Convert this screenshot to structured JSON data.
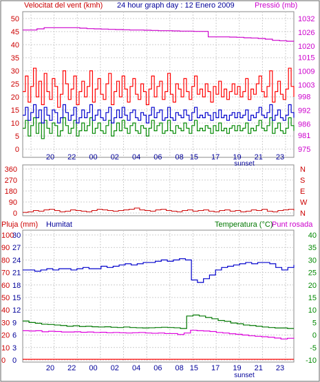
{
  "header": {
    "left_label": "Velocitat del vent (kmh)",
    "center_label": "24 hour graph day : 12 Enero 2009",
    "right_label": "Pressió (mb)"
  },
  "bottom_panel_labels": {
    "rain": "Pluja (mm)",
    "humidity": "Humitat",
    "temperature": "Temperatura (°C)",
    "dewpoint": "Punt rosada"
  },
  "colors": {
    "wind_speed": "#ff0000",
    "wind_avg": "#0000cc",
    "wind_gust_base": "#008800",
    "pressure": "#cc00cc",
    "wind_dir": "#cc0000",
    "humidity": "#0000cc",
    "temperature": "#007700",
    "dewpoint": "#dd00dd",
    "rain": "#ff0000",
    "axis_blue": "#000099",
    "axis_red": "#cc0000",
    "axis_green": "#008800",
    "axis_magenta": "#cc00cc"
  },
  "chart_data": [
    {
      "type": "line",
      "id": "wind-pressure",
      "x_ticks": [
        "20",
        "22",
        "00",
        "02",
        "04",
        "06",
        "08",
        "15",
        "17",
        "19",
        "21",
        "23"
      ],
      "x_sub_label": "sunset",
      "left_axis": {
        "label": "Velocitat del vent (kmh)",
        "ticks": [
          0,
          5,
          10,
          15,
          20,
          25,
          30,
          35,
          40,
          45,
          50
        ],
        "ylim": [
          0,
          50
        ]
      },
      "right_axis": {
        "label": "Pressió (mb)",
        "ticks": [
          975,
          981,
          986,
          992,
          998,
          1003,
          1009,
          1015,
          1020,
          1026,
          1032
        ],
        "ylim": [
          975,
          1032
        ]
      },
      "series": [
        {
          "axis": "left",
          "values": [
            22,
            28,
            18,
            24,
            31,
            20,
            26,
            17,
            29,
            22,
            19,
            27,
            24,
            16,
            21,
            30,
            25,
            19,
            23,
            28,
            17,
            22,
            26,
            20,
            24,
            30,
            18,
            23,
            27,
            21,
            19,
            25,
            29,
            17,
            22,
            26,
            20,
            28,
            23,
            18,
            24,
            27,
            21,
            19,
            25,
            22,
            17,
            23,
            28,
            20,
            24,
            26,
            19,
            22,
            29,
            21,
            18,
            25,
            23,
            20,
            27,
            22,
            19,
            24,
            28,
            21,
            23,
            20,
            25,
            22,
            18,
            24,
            21,
            26,
            20,
            23,
            19,
            22,
            25,
            21,
            24,
            20,
            22,
            27,
            19,
            23,
            21,
            25,
            28,
            22,
            20,
            24,
            30,
            18,
            22,
            26,
            21,
            19,
            23,
            31,
            24,
            20
          ]
        },
        {
          "axis": "left",
          "values": [
            13,
            16,
            11,
            14,
            17,
            12,
            15,
            10,
            16,
            13,
            11,
            15,
            14,
            10,
            12,
            17,
            14,
            11,
            13,
            16,
            10,
            12,
            15,
            12,
            14,
            17,
            11,
            13,
            15,
            12,
            11,
            14,
            16,
            10,
            12,
            15,
            12,
            16,
            13,
            11,
            14,
            15,
            12,
            11,
            14,
            13,
            10,
            13,
            16,
            12,
            14,
            15,
            11,
            12,
            16,
            12,
            11,
            14,
            13,
            12,
            15,
            13,
            11,
            14,
            16,
            12,
            13,
            12,
            14,
            13,
            11,
            14,
            12,
            15,
            12,
            13,
            11,
            13,
            14,
            12,
            14,
            12,
            13,
            15,
            11,
            13,
            12,
            14,
            16,
            13,
            12,
            14,
            17,
            11,
            13,
            15,
            12,
            11,
            13,
            17,
            14,
            12
          ]
        },
        {
          "axis": "left",
          "values": [
            8,
            11,
            5,
            9,
            12,
            6,
            10,
            4,
            11,
            8,
            6,
            10,
            9,
            5,
            7,
            12,
            9,
            6,
            8,
            11,
            5,
            7,
            10,
            7,
            9,
            12,
            6,
            8,
            10,
            7,
            6,
            9,
            11,
            5,
            7,
            10,
            7,
            11,
            8,
            6,
            9,
            10,
            7,
            6,
            9,
            8,
            5,
            8,
            11,
            7,
            9,
            10,
            6,
            7,
            11,
            7,
            6,
            9,
            8,
            7,
            10,
            8,
            6,
            9,
            11,
            7,
            8,
            7,
            9,
            8,
            6,
            9,
            7,
            10,
            7,
            8,
            6,
            8,
            9,
            7,
            9,
            7,
            8,
            10,
            6,
            8,
            7,
            9,
            11,
            8,
            7,
            9,
            12,
            6,
            8,
            10,
            7,
            6,
            8,
            12,
            9,
            7
          ]
        },
        {
          "axis": "right",
          "values": [
            1027,
            1027,
            1027.5,
            1028,
            1028,
            1028,
            1028,
            1028,
            1027.8,
            1027.6,
            1027.5,
            1027.4,
            1027.3,
            1027.2,
            1027.1,
            1027,
            1027,
            1026.9,
            1026.8,
            1026.7,
            1026.7,
            1026.6,
            1026.5,
            1026.5,
            1026.4,
            1026.4,
            1024,
            1024,
            1024,
            1023.9,
            1023.8,
            1023.6,
            1023.5,
            1023.3,
            1023,
            1022.5,
            1022.3,
            1022.1,
            1022
          ]
        }
      ]
    },
    {
      "type": "line",
      "id": "wind-direction",
      "left_axis": {
        "ticks": [
          0,
          90,
          180,
          270,
          360
        ],
        "ylim": [
          0,
          360
        ]
      },
      "right_axis": {
        "ticks": [
          "N",
          "S",
          "E",
          "W",
          "N"
        ]
      },
      "series": [
        {
          "axis": "left",
          "values": [
            5,
            10,
            20,
            15,
            25,
            30,
            20,
            10,
            15,
            25,
            20,
            15,
            10,
            20,
            30,
            25,
            20,
            15,
            20,
            25,
            30,
            40,
            25,
            20,
            15,
            25,
            30,
            20,
            15,
            10,
            20,
            25,
            15,
            20,
            25,
            15,
            10,
            20,
            25,
            15,
            20,
            10,
            15,
            25,
            20,
            30,
            15,
            10,
            20,
            25,
            30,
            20
          ]
        }
      ]
    },
    {
      "type": "line",
      "id": "rain-humidity-temperature",
      "x_ticks": [
        "20",
        "22",
        "00",
        "02",
        "04",
        "06",
        "08",
        "15",
        "17",
        "19",
        "21",
        "23"
      ],
      "x_sub_label": "sunset",
      "left_axis_rain": {
        "ticks": [
          0,
          10,
          20,
          30,
          40,
          50,
          60,
          70,
          80,
          90,
          100
        ],
        "ylim": [
          0,
          100
        ]
      },
      "left_axis_humidity": {
        "ticks": [
          0,
          3,
          6,
          9,
          12,
          15,
          18,
          21,
          24,
          27,
          30
        ],
        "ylim": [
          0,
          30
        ]
      },
      "right_axis": {
        "label": "Temperatura (°C)",
        "ticks": [
          -10,
          -5,
          0,
          5,
          10,
          15,
          20,
          25,
          30,
          35,
          40
        ],
        "ylim": [
          -10,
          40
        ]
      },
      "series": [
        {
          "name": "Pluja (mm)",
          "axis": "rain",
          "values": [
            0,
            0,
            0,
            0,
            0,
            0,
            0,
            0,
            0,
            0,
            0,
            0
          ]
        },
        {
          "name": "Humitat",
          "axis": "humidity",
          "values": [
            72,
            72,
            71,
            72,
            73,
            72,
            73,
            73,
            72,
            73,
            74,
            73,
            73,
            75,
            74,
            75,
            76,
            77,
            76,
            77,
            78,
            78,
            79,
            80,
            79,
            80,
            81,
            80,
            64,
            62,
            65,
            68,
            72,
            74,
            75,
            76,
            77,
            78,
            77,
            78,
            78,
            77,
            74,
            72,
            74,
            76
          ]
        },
        {
          "name": "Temperatura (°C)",
          "axis": "temperature",
          "values": [
            5.6,
            5,
            4.7,
            4.3,
            4.2,
            4,
            3.8,
            3.5,
            3.7,
            3.4,
            3.5,
            3.3,
            3.2,
            3.3,
            3.1,
            3,
            3.2,
            3,
            2.9,
            2.8,
            2.9,
            3,
            3.1,
            3,
            2.9,
            2.6,
            7.6,
            8,
            7.6,
            7,
            6.5,
            5.8,
            5.5,
            4.8,
            4.5,
            4,
            3.8,
            3.5,
            3.2,
            3,
            2.8,
            2.8,
            2.6,
            2.6
          ]
        },
        {
          "name": "Punt rosada",
          "axis": "temperature",
          "values": [
            1.7,
            1.6,
            1.7,
            1.3,
            1.5,
            1.4,
            1.2,
            1.2,
            1.3,
            1.1,
            1.2,
            1,
            1.1,
            0.9,
            1,
            0.9,
            0.8,
            0.9,
            1,
            0.8,
            0.7,
            0.8,
            0.6,
            0.6,
            0.2,
            0.8,
            1.9,
            1.7,
            1.6,
            1.4,
            1,
            0.8,
            0.5,
            0.3,
            0,
            -0.3,
            -0.5,
            -0.7,
            -0.9,
            -1.2,
            -1.6,
            -1.3,
            -1.1
          ]
        }
      ]
    }
  ]
}
